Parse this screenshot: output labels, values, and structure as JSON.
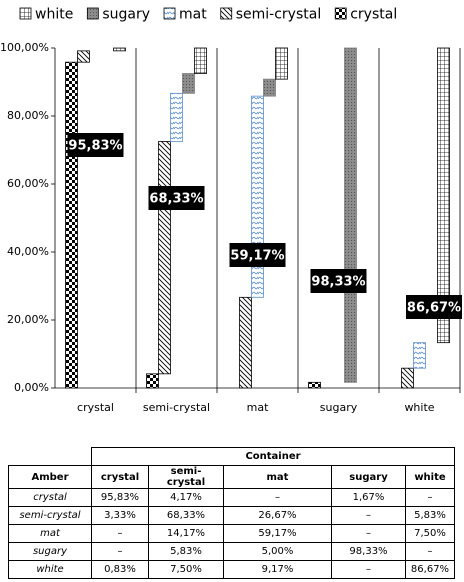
{
  "chart_data": {
    "type": "floating-bar",
    "categories": [
      "crystal",
      "semi-crystal",
      "mat",
      "sugary",
      "white"
    ],
    "series": [
      {
        "name": "white",
        "color": "#000000",
        "pattern": "grid",
        "values": [
          0.83,
          7.5,
          9.17,
          null,
          86.67
        ],
        "value_labels": [
          null,
          null,
          null,
          null,
          "86,67%"
        ]
      },
      {
        "name": "sugary",
        "color": "#7f7f7f",
        "pattern": "dots",
        "values": [
          null,
          5.83,
          5.0,
          98.33,
          null
        ],
        "value_labels": [
          null,
          null,
          null,
          "98,33%",
          null
        ]
      },
      {
        "name": "mat",
        "color": "#5b8fd0",
        "pattern": "wave",
        "values": [
          null,
          14.17,
          59.17,
          null,
          7.5
        ],
        "value_labels": [
          null,
          null,
          "59,17%",
          null,
          null
        ]
      },
      {
        "name": "semi-crystal",
        "color": "#000000",
        "pattern": "hatch",
        "values": [
          3.33,
          68.33,
          26.67,
          null,
          5.83
        ],
        "value_labels": [
          null,
          "68,33%",
          null,
          null,
          null
        ]
      },
      {
        "name": "crystal",
        "color": "#000000",
        "pattern": "checker",
        "values": [
          95.83,
          4.17,
          null,
          1.67,
          null
        ],
        "value_labels": [
          "95,83%",
          null,
          null,
          null,
          null
        ]
      }
    ],
    "ylim": [
      0,
      100
    ],
    "yticks": [
      {
        "value": 0,
        "label": "0,00%"
      },
      {
        "value": 20,
        "label": "20,00%"
      },
      {
        "value": 40,
        "label": "40,00%"
      },
      {
        "value": 60,
        "label": "60,00%"
      },
      {
        "value": 80,
        "label": "80,00%"
      },
      {
        "value": 100,
        "label": "100,00%"
      }
    ],
    "legend": "top"
  },
  "table": {
    "group_header": "Container",
    "columns": [
      "Amber",
      "crystal",
      "semi-crystal",
      "mat",
      "sugary",
      "white"
    ],
    "rows": [
      [
        "crystal",
        "95,83%",
        "4,17%",
        "–",
        "1,67%",
        "–"
      ],
      [
        "semi-crystal",
        "3,33%",
        "68,33%",
        "26,67%",
        "–",
        "5,83%"
      ],
      [
        "mat",
        "–",
        "14,17%",
        "59,17%",
        "–",
        "7,50%"
      ],
      [
        "sugary",
        "–",
        "5,83%",
        "5,00%",
        "98,33%",
        "–"
      ],
      [
        "white",
        "0,83%",
        "7,50%",
        "9,17%",
        "–",
        "86,67%"
      ]
    ]
  }
}
